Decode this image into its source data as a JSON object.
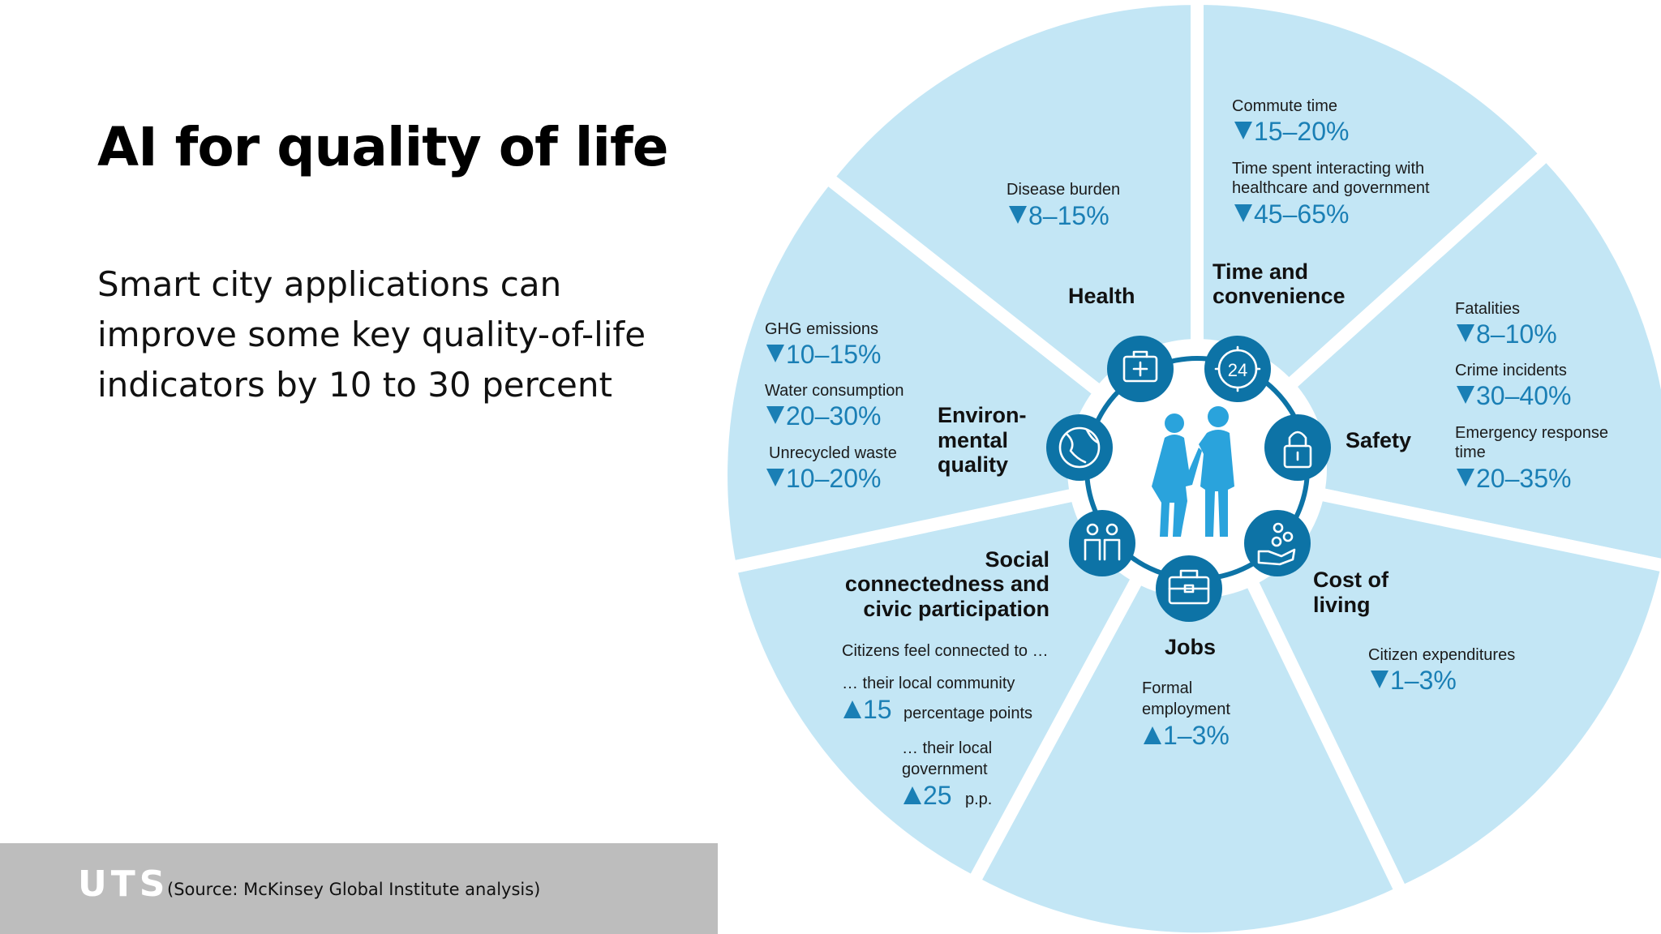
{
  "slide": {
    "title": "AI for quality of life",
    "subtitle": "Smart city applications can improve some key quality-of-life indicators by 10 to 30 percent",
    "logo": "UTS",
    "source": "(Source: McKinsey Global Institute analysis)"
  },
  "colors": {
    "segment_fill": "#c3e6f5",
    "accent": "#1a7fb5",
    "icon_fill": "#0d73a6",
    "footer": "#bdbdbd"
  },
  "wheel": {
    "health": {
      "name": "Health",
      "metrics": [
        {
          "label": "Disease burden",
          "direction": "down",
          "value": "8–15%"
        }
      ]
    },
    "time": {
      "name_line1": "Time and",
      "name_line2": "convenience",
      "metrics": [
        {
          "label": "Commute time",
          "direction": "down",
          "value": "15–20%"
        },
        {
          "label_line1": "Time spent interacting with",
          "label_line2": "healthcare and government",
          "direction": "down",
          "value": "45–65%"
        }
      ]
    },
    "safety": {
      "name": "Safety",
      "metrics": [
        {
          "label": "Fatalities",
          "direction": "down",
          "value": "8–10%"
        },
        {
          "label": "Crime incidents",
          "direction": "down",
          "value": "30–40%"
        },
        {
          "label_line1": "Emergency response",
          "label_line2": "time",
          "direction": "down",
          "value": "20–35%"
        }
      ]
    },
    "cost": {
      "name_line1": "Cost of",
      "name_line2": "living",
      "metrics": [
        {
          "label": "Citizen expenditures",
          "direction": "down",
          "value": "1–3%"
        }
      ]
    },
    "jobs": {
      "name": "Jobs",
      "metrics": [
        {
          "label_line1": "Formal",
          "label_line2": "employment",
          "direction": "up",
          "value": "1–3%"
        }
      ]
    },
    "social": {
      "name_line1": "Social",
      "name_line2": "connectedness and",
      "name_line3": "civic participation",
      "intro": "Citizens feel connected to …",
      "metrics": [
        {
          "label": "… their local community",
          "direction": "up",
          "value": "15",
          "unit": "percentage points"
        },
        {
          "label_line1": "… their local",
          "label_line2": "government",
          "direction": "up",
          "value": "25",
          "unit": "p.p."
        }
      ]
    },
    "environment": {
      "name_line1": "Environ-",
      "name_line2": "mental",
      "name_line3": "quality",
      "metrics": [
        {
          "label": "GHG emissions",
          "direction": "down",
          "value": "10–15%"
        },
        {
          "label": "Water consumption",
          "direction": "down",
          "value": "20–30%"
        },
        {
          "label": "Unrecycled waste",
          "direction": "down",
          "value": "10–20%"
        }
      ]
    },
    "icons": {
      "health": "medical-kit",
      "time": "24-hour-clock",
      "safety": "padlock",
      "cost": "hand-with-coins",
      "jobs": "briefcase",
      "social": "two-people",
      "environment": "globe",
      "center": "two-people-with-phones"
    },
    "clock_label": "24"
  }
}
